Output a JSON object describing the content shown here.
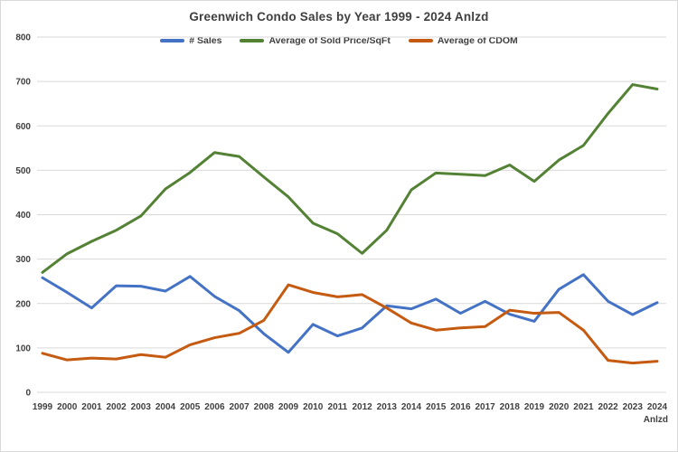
{
  "chart_data": {
    "type": "line",
    "title": "Greenwich Condo Sales by Year 1999 - 2024 Anlzd",
    "categories": [
      "1999",
      "2000",
      "2001",
      "2002",
      "2003",
      "2004",
      "2005",
      "2006",
      "2007",
      "2008",
      "2009",
      "2010",
      "2011",
      "2012",
      "2013",
      "2014",
      "2015",
      "2016",
      "2017",
      "2018",
      "2019",
      "2020",
      "2021",
      "2022",
      "2023",
      "2024"
    ],
    "last_category_note": "Anlzd",
    "series": [
      {
        "name": "# Sales",
        "color": "#4472C4",
        "values": [
          258,
          225,
          190,
          240,
          239,
          228,
          261,
          216,
          184,
          132,
          90,
          153,
          127,
          145,
          195,
          188,
          210,
          178,
          205,
          176,
          160,
          232,
          265,
          205,
          175,
          202
        ]
      },
      {
        "name": "Average of Sold Price/SqFt",
        "color": "#548235",
        "values": [
          270,
          312,
          340,
          365,
          397,
          458,
          495,
          540,
          531,
          485,
          440,
          381,
          357,
          313,
          365,
          456,
          494,
          491,
          488,
          512,
          475,
          523,
          556,
          628,
          693,
          683
        ]
      },
      {
        "name": "Average of CDOM",
        "color": "#C55A11",
        "values": [
          88,
          73,
          77,
          75,
          85,
          79,
          107,
          123,
          133,
          162,
          242,
          225,
          215,
          220,
          190,
          156,
          140,
          145,
          148,
          185,
          178,
          180,
          140,
          72,
          66,
          70
        ]
      }
    ],
    "ylim": [
      0,
      800
    ],
    "y_ticks": [
      "0",
      "100",
      "200",
      "300",
      "400",
      "500",
      "600",
      "700",
      "800"
    ],
    "grid": true,
    "legend_position": "top",
    "colors": {
      "grid": "#d9d9d9",
      "axis_text": "#404040",
      "title_text": "#3f3f3f",
      "border": "#d9d9d9"
    }
  }
}
